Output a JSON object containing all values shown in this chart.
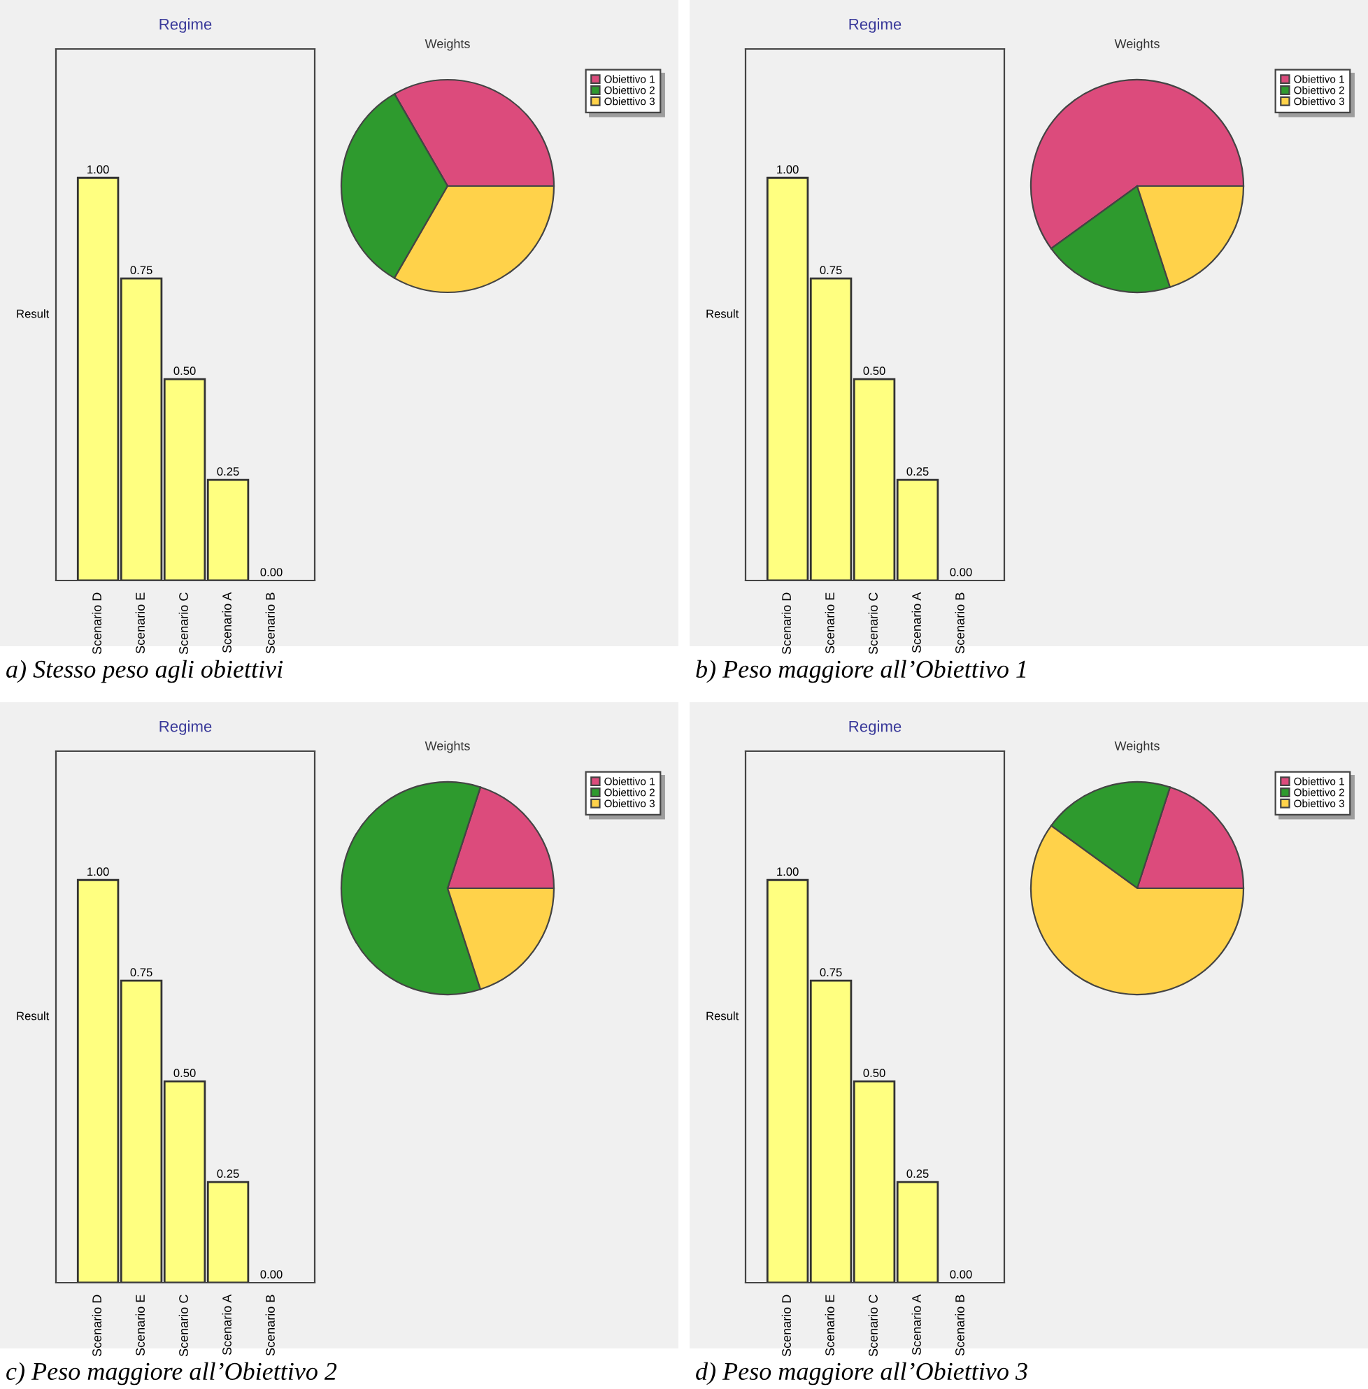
{
  "chart_data": [
    {
      "type": "bar",
      "title": "Regime",
      "ylabel": "Result",
      "categories": [
        "Scenario D",
        "Scenario E",
        "Scenario C",
        "Scenario A",
        "Scenario B"
      ],
      "values": [
        1.0,
        0.75,
        0.5,
        0.25,
        0.0
      ],
      "value_labels": [
        "1.00",
        "0.75",
        "0.50",
        "0.25",
        "0.00"
      ],
      "color": "#ffff80",
      "tick_labels": "x",
      "annotations": [
        "a) Stesso peso agli obiettivi"
      ]
    },
    {
      "type": "pie",
      "title": "Weights",
      "categories": [
        "Obiettivo 1",
        "Obiettivo 2",
        "Obiettivo 3"
      ],
      "values": [
        33.33,
        33.33,
        33.34
      ],
      "colors": [
        "#dc4b7c",
        "#2e9a2e",
        "#ffd24a"
      ],
      "legend": "top right"
    },
    {
      "type": "bar",
      "title": "Regime",
      "ylabel": "Result",
      "categories": [
        "Scenario D",
        "Scenario E",
        "Scenario C",
        "Scenario A",
        "Scenario B"
      ],
      "values": [
        1.0,
        0.75,
        0.5,
        0.25,
        0.0
      ],
      "value_labels": [
        "1.00",
        "0.75",
        "0.50",
        "0.25",
        "0.00"
      ],
      "color": "#ffff80",
      "tick_labels": "x",
      "annotations": [
        "b) Peso maggiore all’Obiettivo 1"
      ]
    },
    {
      "type": "pie",
      "title": "Weights",
      "categories": [
        "Obiettivo 1",
        "Obiettivo 2",
        "Obiettivo 3"
      ],
      "values": [
        60,
        20,
        20
      ],
      "colors": [
        "#dc4b7c",
        "#2e9a2e",
        "#ffd24a"
      ],
      "legend": "top right"
    },
    {
      "type": "bar",
      "title": "Regime",
      "ylabel": "Result",
      "categories": [
        "Scenario D",
        "Scenario E",
        "Scenario C",
        "Scenario A",
        "Scenario B"
      ],
      "values": [
        1.0,
        0.75,
        0.5,
        0.25,
        0.0
      ],
      "value_labels": [
        "1.00",
        "0.75",
        "0.50",
        "0.25",
        "0.00"
      ],
      "color": "#ffff80",
      "tick_labels": "x",
      "annotations": [
        "c) Peso maggiore all’Obiettivo 2"
      ]
    },
    {
      "type": "pie",
      "title": "Weights",
      "categories": [
        "Obiettivo 1",
        "Obiettivo 2",
        "Obiettivo 3"
      ],
      "values": [
        20,
        60,
        20
      ],
      "colors": [
        "#dc4b7c",
        "#2e9a2e",
        "#ffd24a"
      ],
      "legend": "top right"
    },
    {
      "type": "bar",
      "title": "Regime",
      "ylabel": "Result",
      "categories": [
        "Scenario D",
        "Scenario E",
        "Scenario C",
        "Scenario A",
        "Scenario B"
      ],
      "values": [
        1.0,
        0.75,
        0.5,
        0.25,
        0.0
      ],
      "value_labels": [
        "1.00",
        "0.75",
        "0.50",
        "0.25",
        "0.00"
      ],
      "color": "#ffff80",
      "tick_labels": "x",
      "annotations": [
        "d) Peso maggiore all’Obiettivo 3"
      ]
    },
    {
      "type": "pie",
      "title": "Weights",
      "categories": [
        "Obiettivo 1",
        "Obiettivo 2",
        "Obiettivo 3"
      ],
      "values": [
        20,
        20,
        60
      ],
      "colors": [
        "#dc4b7c",
        "#2e9a2e",
        "#ffd24a"
      ],
      "legend": "top right"
    }
  ]
}
